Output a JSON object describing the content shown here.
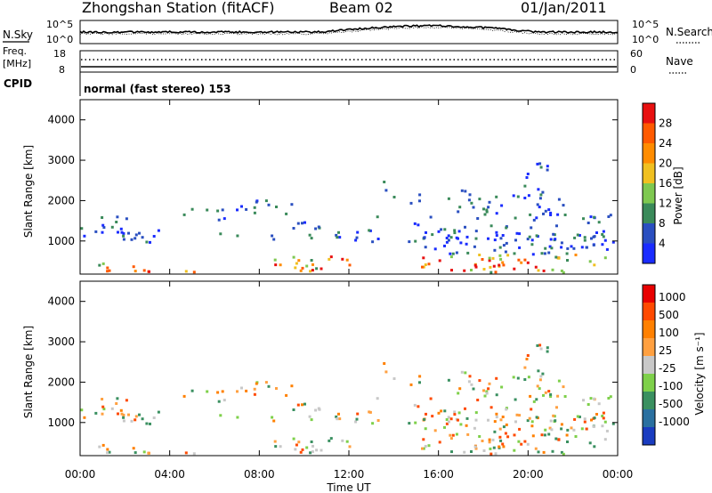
{
  "header": {
    "title": "Zhongshan Station (fitACF)",
    "beam": "Beam 02",
    "date": "01/Jan/2011"
  },
  "nsky_panel": {
    "left_label": "N.Sky",
    "right_label": "N.Search",
    "left_ticks": [
      "10^5",
      "10^0"
    ],
    "right_ticks": [
      "10^5",
      "10^0"
    ]
  },
  "freq_panel": {
    "left_label_line1": "Freq.",
    "left_label_line2": "[MHz]",
    "left_ticks": [
      "18",
      "8"
    ],
    "right_label": "Nave",
    "right_ticks": [
      "60",
      "0"
    ]
  },
  "cpid_panel": {
    "label": "CPID",
    "value": "normal (fast stereo) 153"
  },
  "chart_data": [
    {
      "type": "heatmap",
      "name": "power",
      "ylabel": "Slant Range [km]",
      "ylim": [
        180,
        4500
      ],
      "yticks": [
        "1000",
        "2000",
        "3000",
        "4000"
      ],
      "colorbar_label": "Power [dB]",
      "colorbar_ticks": [
        "4",
        "8",
        "12",
        "16",
        "20",
        "24",
        "28"
      ],
      "colorbar_colors": [
        "#1a2cff",
        "#2a4fc0",
        "#3a8a5a",
        "#7ec850",
        "#f0c020",
        "#ff8c00",
        "#ff5a00",
        "#e81010"
      ]
    },
    {
      "type": "heatmap",
      "name": "velocity",
      "ylabel": "Slant Range [km]",
      "ylim": [
        180,
        4500
      ],
      "yticks": [
        "1000",
        "2000",
        "3000",
        "4000"
      ],
      "colorbar_label": "Velocity [m s⁻¹]",
      "colorbar_ticks": [
        "1000",
        "500",
        "100",
        "25",
        "-25",
        "-100",
        "-500",
        "-1000"
      ],
      "colorbar_colors": [
        "#1a3cc0",
        "#2a70a0",
        "#3a9060",
        "#7ed04a",
        "#c8c8c8",
        "#ffa040",
        "#ff8000",
        "#ff4a00",
        "#e80000"
      ]
    }
  ],
  "x_axis": {
    "xlabel": "Time UT",
    "ticks": [
      "00:00",
      "04:00",
      "08:00",
      "12:00",
      "16:00",
      "20:00",
      "00:00"
    ]
  }
}
